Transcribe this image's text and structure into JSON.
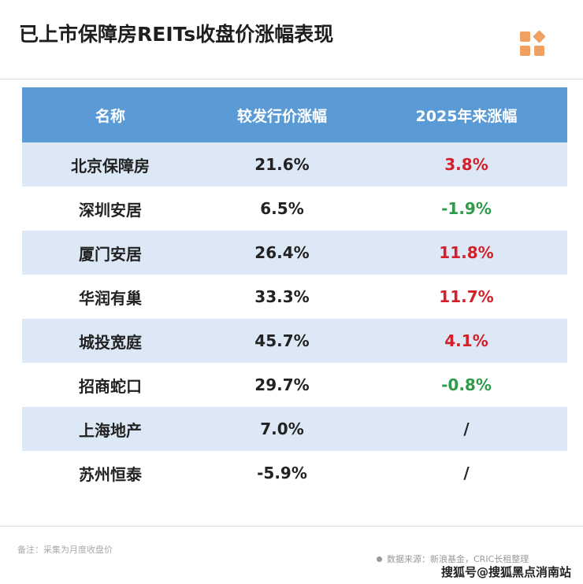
{
  "title": "已上市保障房REITs收盘价涨幅表现",
  "colors": {
    "header": "#5b9bd5",
    "alt_row": "#dde8f6",
    "positive": "#d3202a",
    "negative": "#2e9b48",
    "logo": "#f0a060"
  },
  "chart_data": {
    "type": "table",
    "columns": [
      "名称",
      "较发行价涨幅",
      "2025年来涨幅"
    ],
    "rows": [
      [
        "北京保障房",
        "21.6%",
        "3.8%"
      ],
      [
        "深圳安居",
        "6.5%",
        "-1.9%"
      ],
      [
        "厦门安居",
        "26.4%",
        "11.8%"
      ],
      [
        "华润有巢",
        "33.3%",
        "11.7%"
      ],
      [
        "城投宽庭",
        "45.7%",
        "4.1%"
      ],
      [
        "招商蛇口",
        "29.7%",
        "-0.8%"
      ],
      [
        "上海地产",
        "7.0%",
        "/"
      ],
      [
        "苏州恒泰",
        "-5.9%",
        "/"
      ]
    ]
  },
  "footer": {
    "note": "备注：采集为月度收盘价",
    "source": "数据来源：新浪基金，CRIC长租整理",
    "watermark": "搜狐号@搜狐黑点消南站"
  }
}
